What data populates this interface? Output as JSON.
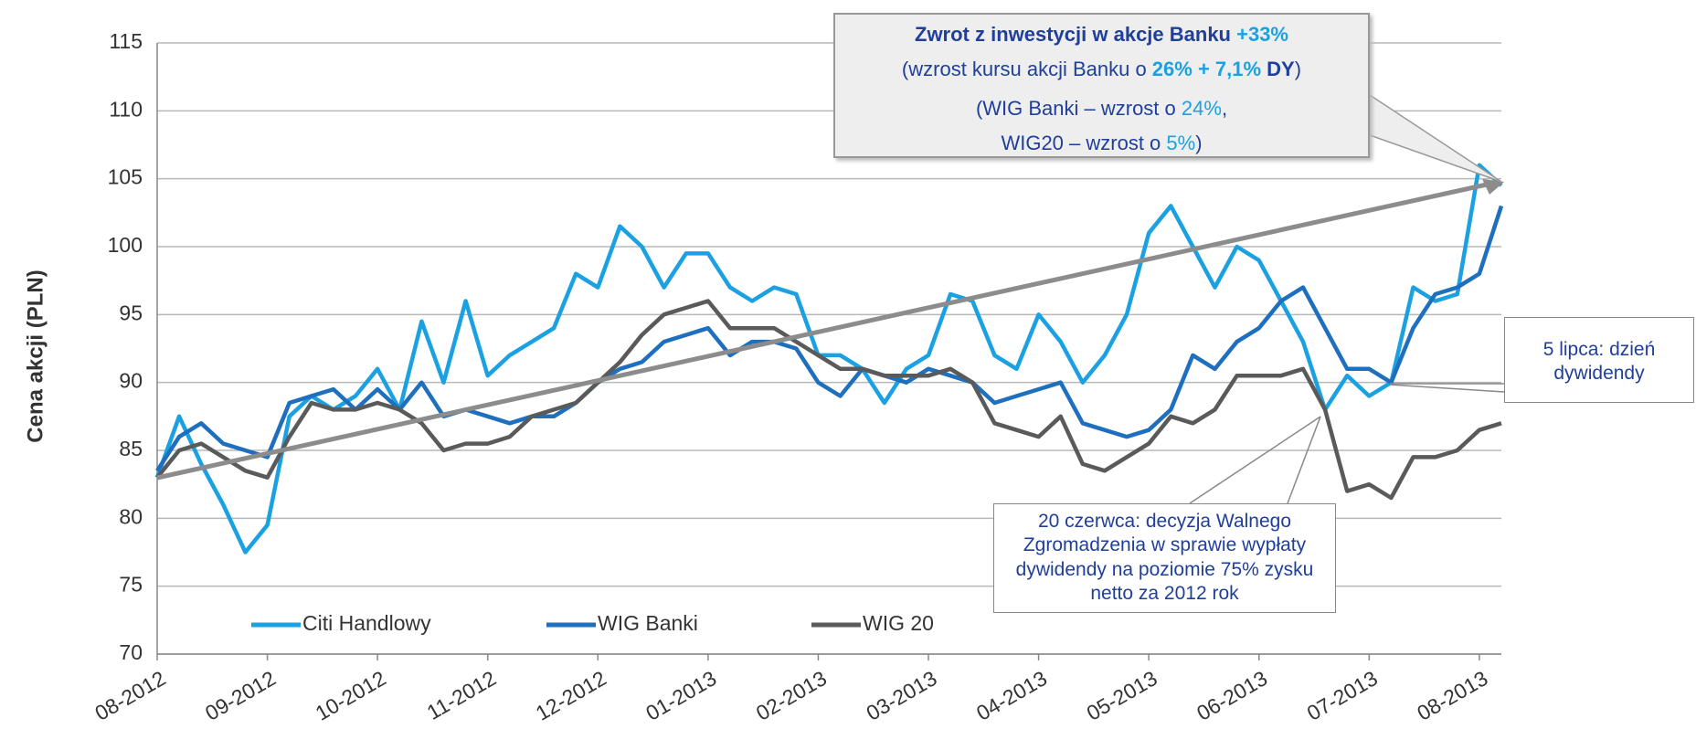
{
  "chart_data": {
    "type": "line",
    "y_label": "Cena akcji (PLN)",
    "categories": [
      "08-2012",
      null,
      null,
      null,
      null,
      "09-2012",
      null,
      null,
      null,
      null,
      "10-2012",
      null,
      null,
      null,
      null,
      "11-2012",
      null,
      null,
      null,
      null,
      "12-2012",
      null,
      null,
      null,
      null,
      "01-2013",
      null,
      null,
      null,
      null,
      "02-2013",
      null,
      null,
      null,
      null,
      "03-2013",
      null,
      null,
      null,
      null,
      "04-2013",
      null,
      null,
      null,
      null,
      "05-2013",
      null,
      null,
      null,
      null,
      "06-2013",
      null,
      null,
      null,
      null,
      "07-2013",
      null,
      null,
      null,
      null,
      "08-2013",
      null
    ],
    "series": [
      {
        "name": "Citi Handlowy",
        "color": "#1ba1e2",
        "values": [
          83,
          87.5,
          84,
          81,
          77.5,
          79.5,
          87.5,
          89,
          88,
          89,
          91,
          88,
          94.5,
          90,
          96,
          90.5,
          92,
          93,
          94,
          98,
          97,
          101.5,
          100,
          97,
          99.5,
          99.5,
          97,
          96,
          97,
          96.5,
          92,
          92,
          91,
          88.5,
          91,
          92,
          96.5,
          96,
          92,
          91,
          95,
          93,
          90,
          92,
          95,
          101,
          103,
          100,
          97,
          100,
          99,
          96,
          93,
          88,
          90.5,
          89,
          90,
          97,
          96,
          96.5,
          106,
          104.5
        ]
      },
      {
        "name": "WIG Banki",
        "color": "#1f6fbf",
        "values": [
          83.5,
          86,
          87,
          85.5,
          85,
          84.5,
          88.5,
          89,
          89.5,
          88,
          89.5,
          88,
          90,
          87.5,
          88,
          87.5,
          87,
          87.5,
          87.5,
          88.5,
          90,
          91,
          91.5,
          93,
          93.5,
          94,
          92,
          93,
          93,
          92.5,
          90,
          89,
          91,
          90.5,
          90,
          91,
          90.5,
          90,
          88.5,
          89,
          89.5,
          90,
          87,
          86.5,
          86,
          86.5,
          88,
          92,
          91,
          93,
          94,
          96,
          97,
          94,
          91,
          91,
          90,
          94,
          96.5,
          97,
          98,
          103
        ]
      },
      {
        "name": "WIG 20",
        "color": "#5a5a5a",
        "values": [
          83,
          85,
          85.5,
          84.5,
          83.5,
          83,
          86,
          88.5,
          88,
          88,
          88.5,
          88,
          87,
          85,
          85.5,
          85.5,
          86,
          87.5,
          88,
          88.5,
          90,
          91.5,
          93.5,
          95,
          95.5,
          96,
          94,
          94,
          94,
          93,
          92,
          91,
          91,
          90.5,
          90.5,
          90.5,
          91,
          90,
          87,
          86.5,
          86,
          87.5,
          84,
          83.5,
          84.5,
          85.5,
          87.5,
          87,
          88,
          90.5,
          90.5,
          90.5,
          91,
          88,
          82,
          82.5,
          81.5,
          84.5,
          84.5,
          85,
          86.5,
          87
        ]
      }
    ],
    "ylim": [
      70,
      115
    ],
    "yticks": [
      70,
      75,
      80,
      85,
      90,
      95,
      100,
      105,
      110,
      115
    ],
    "grid": true,
    "annotations": [
      {
        "lines": [
          [
            "Zwrot z inwestycji w akcje Banku ",
            "+33%"
          ],
          [
            "(wzrost kursu akcji Banku o ",
            "26% + 7,1%",
            " DY",
            ")"
          ],
          [
            "(WIG Banki – wzrost o ",
            "24%",
            ","
          ],
          [
            "WIG20 – wzrost o ",
            "5%",
            ")"
          ]
        ]
      },
      {
        "lines": [
          [
            "5 lipca: dzień"
          ],
          [
            "dywidendy"
          ]
        ]
      },
      {
        "lines": [
          [
            "20 czerwca: decyzja Walnego"
          ],
          [
            "Zgromadzenia w sprawie wypłaty"
          ],
          [
            "dywidendy na poziomie 75% zysku"
          ],
          [
            "netto za 2012 rok"
          ]
        ]
      }
    ]
  }
}
